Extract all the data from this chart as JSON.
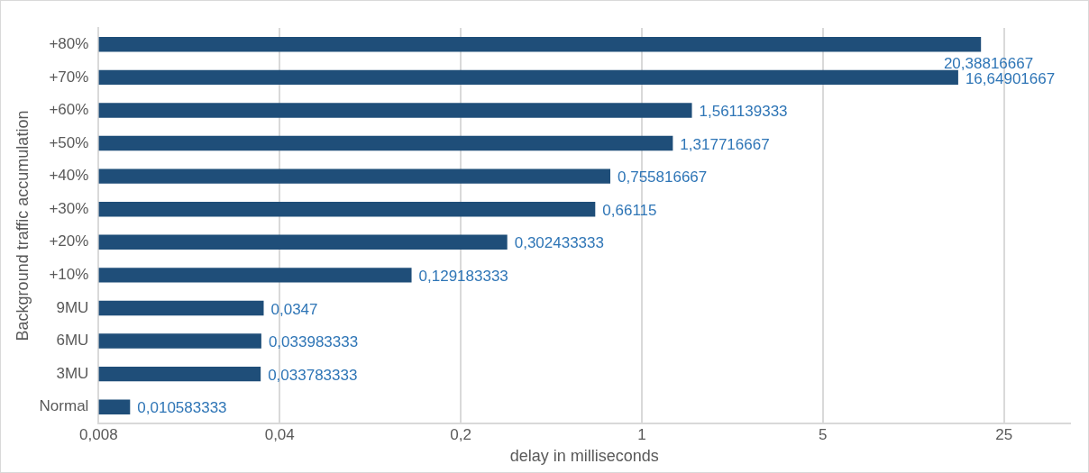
{
  "chart_data": {
    "type": "bar",
    "orientation": "horizontal",
    "xlabel": "delay in milliseconds",
    "ylabel": "Background traffic accumulation",
    "categories": [
      "+80%",
      "+70%",
      "+60%",
      "+50%",
      "+40%",
      "+30%",
      "+20%",
      "+10%",
      "9MU",
      "6MU",
      "3MU",
      "Normal"
    ],
    "values": [
      20.38816667,
      16.64901667,
      1.561139333,
      1.317716667,
      0.755816667,
      0.66115,
      0.302433333,
      0.129183333,
      0.0347,
      0.033983333,
      0.033783333,
      0.010583333
    ],
    "value_labels": [
      "20,38816667",
      "16,64901667",
      "1,561139333",
      "1,317716667",
      "0,755816667",
      "0,66115",
      "0,302433333",
      "0,129183333",
      "0,0347",
      "0,033983333",
      "0,033783333",
      "0,010583333"
    ],
    "color": "#1f4e79",
    "log": "x",
    "xlim": [
      0.008,
      45
    ],
    "xticks": [
      {
        "value": 0.008,
        "label": "0,008"
      },
      {
        "value": 0.04,
        "label": "0,04"
      },
      {
        "value": 0.2,
        "label": "0,2"
      },
      1,
      5,
      25
    ],
    "grid": "x",
    "legend": false
  }
}
